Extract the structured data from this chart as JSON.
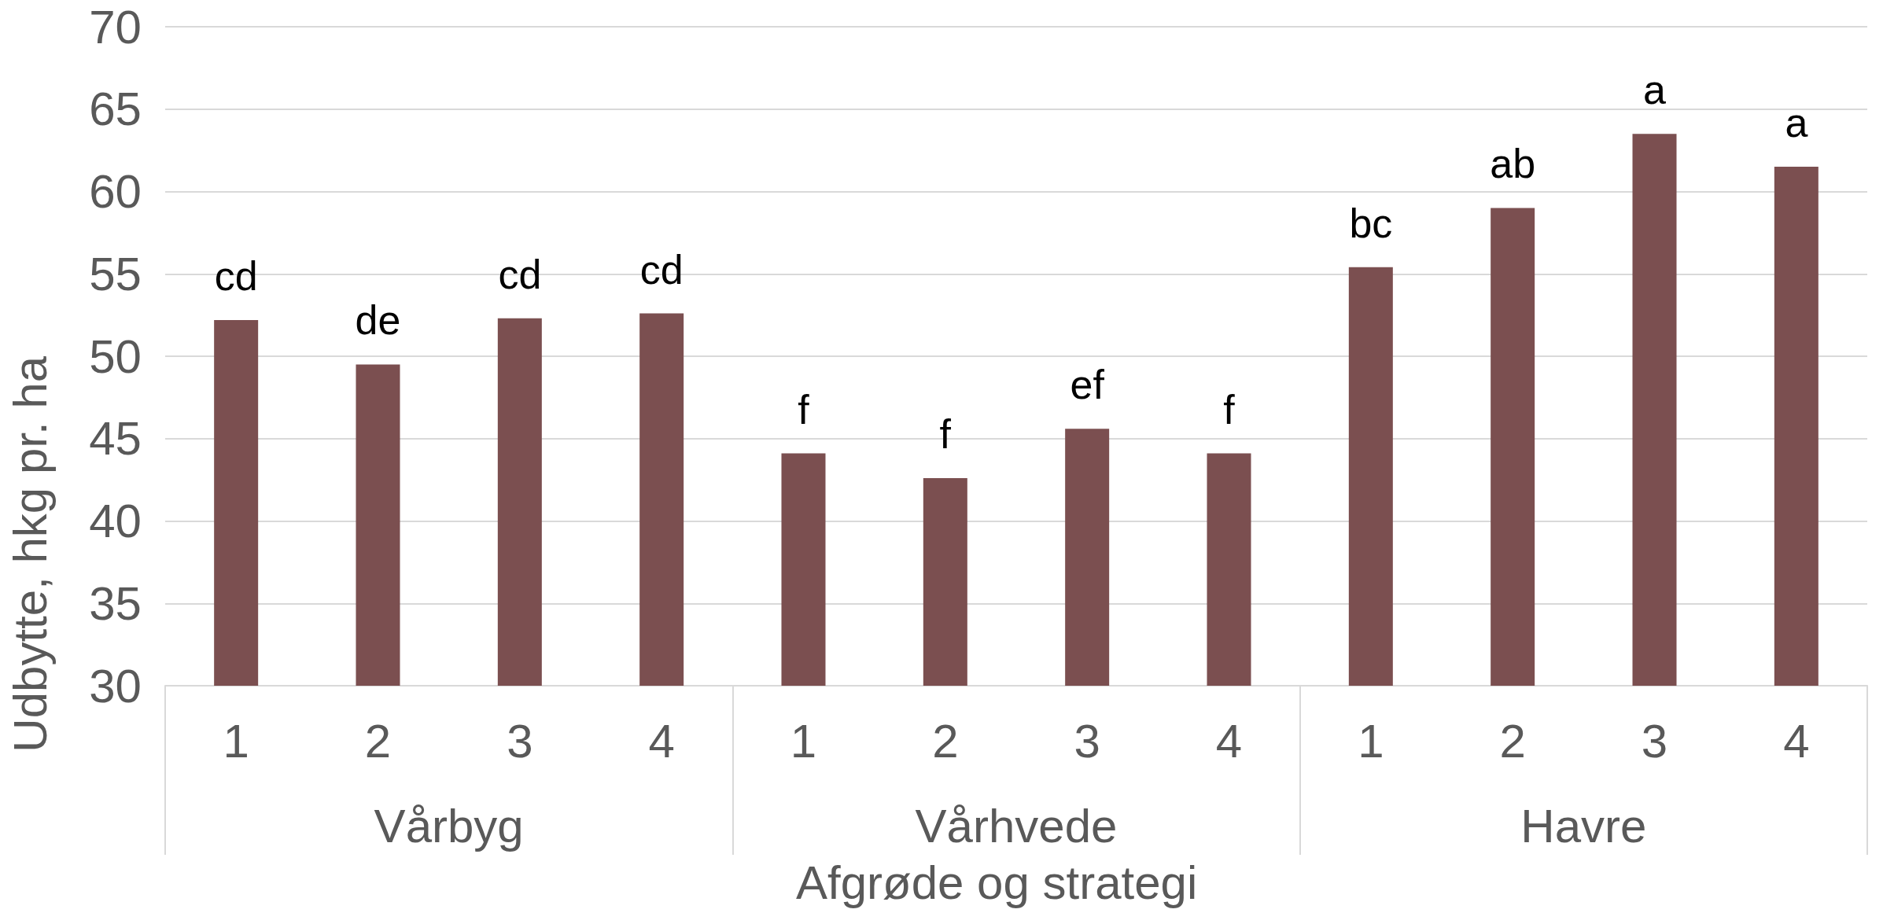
{
  "chart_data": {
    "type": "bar",
    "xlabel": "Afgrøde og strategi",
    "ylabel": "Udbytte, hkg pr. ha",
    "categories": [
      "1",
      "2",
      "3",
      "4",
      "1",
      "2",
      "3",
      "4",
      "1",
      "2",
      "3",
      "4"
    ],
    "annotations": [
      "Vårbyg",
      "Vårhvede",
      "Havre"
    ],
    "values": [
      52.2,
      49.5,
      52.3,
      52.6,
      44.1,
      42.6,
      45.6,
      44.1,
      55.4,
      59.0,
      63.5,
      61.5
    ],
    "value_labels": [
      "cd",
      "de",
      "cd",
      "cd",
      "f",
      "f",
      "ef",
      "f",
      "bc",
      "ab",
      "a",
      "a"
    ],
    "color": "#7b4f50",
    "ylim": [
      30,
      70
    ],
    "yticks": [
      30,
      35,
      40,
      45,
      50,
      55,
      60,
      65,
      70
    ],
    "grid": "y"
  }
}
